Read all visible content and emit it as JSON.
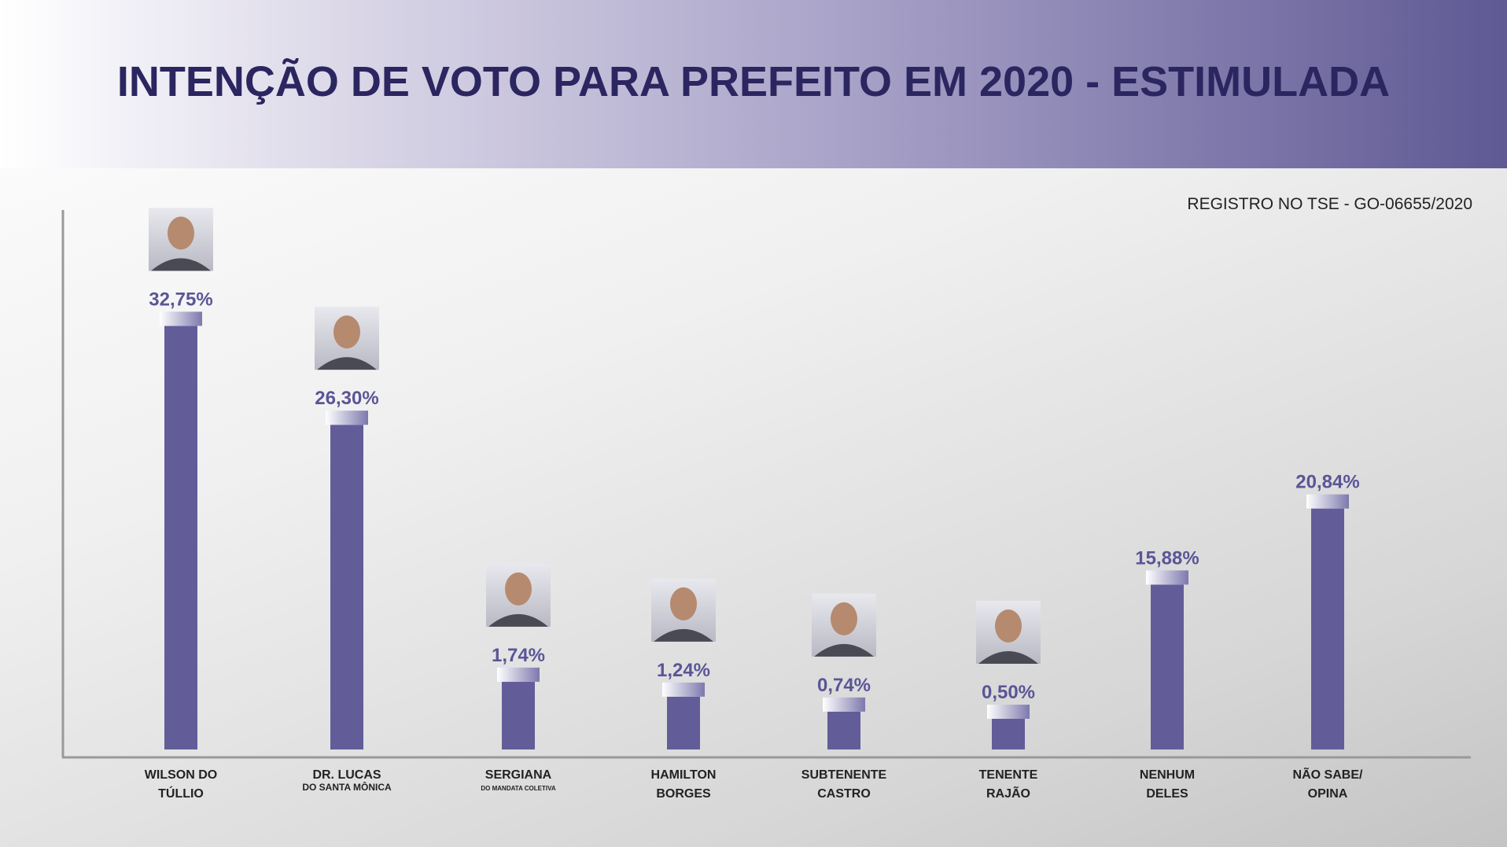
{
  "title": "INTENÇÃO DE VOTO PARA PREFEITO EM 2020 - ESTIMULADA",
  "registration": "REGISTRO NO TSE - GO-06655/2020",
  "colors": {
    "bar": "#625d99",
    "title": "#2b2560",
    "value": "#5a5596"
  },
  "chart_data": {
    "type": "bar",
    "title": "INTENÇÃO DE VOTO PARA PREFEITO EM 2020 - ESTIMULADA",
    "categories": [
      {
        "line1": "WILSON DO",
        "line2": "TÚLLIO",
        "sub": "",
        "photo": true
      },
      {
        "line1": "DR. LUCAS",
        "line2": "",
        "sub": "DO SANTA MÔNICA",
        "photo": true
      },
      {
        "line1": "SERGIANA",
        "line2": "",
        "sub": "DO MANDATA COLETIVA",
        "photo": true
      },
      {
        "line1": "HAMILTON",
        "line2": "BORGES",
        "sub": "",
        "photo": true
      },
      {
        "line1": "SUBTENENTE",
        "line2": "CASTRO",
        "sub": "",
        "photo": true
      },
      {
        "line1": "TENENTE",
        "line2": "RAJÃO",
        "sub": "",
        "photo": true
      },
      {
        "line1": "NENHUM",
        "line2": "DELES",
        "sub": "",
        "photo": false
      },
      {
        "line1": "NÃO SABE/",
        "line2": "OPINA",
        "sub": "",
        "photo": false
      }
    ],
    "values": [
      32.75,
      26.3,
      1.74,
      1.24,
      0.74,
      0.5,
      15.88,
      20.84
    ],
    "value_labels": [
      "32,75%",
      "26,30%",
      "1,74%",
      "1,24%",
      "0,74%",
      "0,50%",
      "15,88%",
      "20,84%"
    ],
    "xlabel": "",
    "ylabel": "",
    "grid": false
  }
}
